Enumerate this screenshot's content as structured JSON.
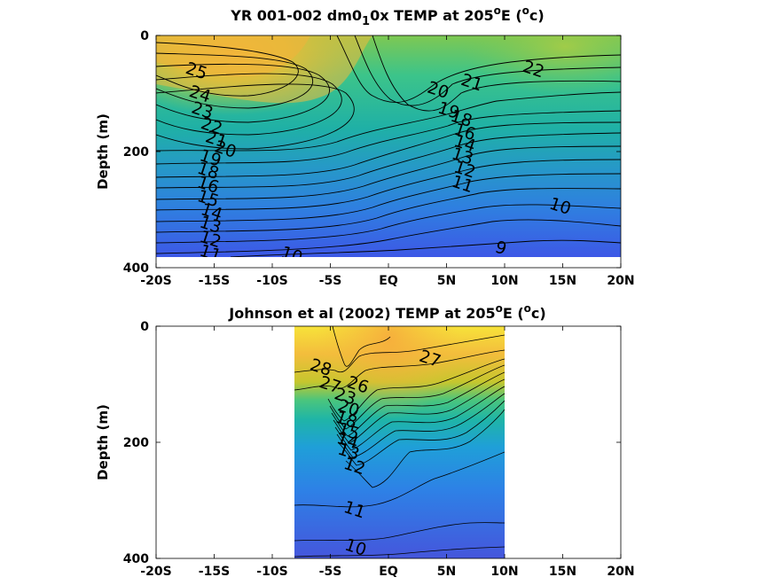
{
  "chart_data": [
    {
      "type": "contour",
      "title_parts": {
        "a": "YR 001-002 dm0",
        "sub": "1",
        "b": "0x TEMP at 205",
        "sup1": "o",
        "c": "E (",
        "sup2": "o",
        "d": "c)"
      },
      "ylabel": "Depth (m)",
      "xticks": [
        "-20S",
        "-15S",
        "-10S",
        "-5S",
        "EQ",
        "5N",
        "10N",
        "15N",
        "20N"
      ],
      "xtick_values": [
        -20,
        -15,
        -10,
        -5,
        0,
        5,
        10,
        15,
        20
      ],
      "yticks": [
        "0",
        "200",
        "400"
      ],
      "ytick_values": [
        0,
        200,
        400
      ],
      "xlim": [
        -20,
        20
      ],
      "ylim": [
        0,
        400
      ],
      "y_reversed": true,
      "data_extent": {
        "x": [
          -20,
          20
        ],
        "y": [
          0,
          385
        ]
      },
      "contour_labels": [
        {
          "text": "25",
          "x": -16.5,
          "y": 60
        },
        {
          "text": "24",
          "x": -16.2,
          "y": 100
        },
        {
          "text": "23",
          "x": -16.0,
          "y": 128
        },
        {
          "text": "22",
          "x": -15.2,
          "y": 155
        },
        {
          "text": "21",
          "x": -14.8,
          "y": 178
        },
        {
          "text": "20",
          "x": -14.0,
          "y": 195
        },
        {
          "text": "19",
          "x": -15.3,
          "y": 210
        },
        {
          "text": "18",
          "x": -15.5,
          "y": 232
        },
        {
          "text": "16",
          "x": -15.5,
          "y": 256
        },
        {
          "text": "15",
          "x": -15.5,
          "y": 280
        },
        {
          "text": "14",
          "x": -15.2,
          "y": 303
        },
        {
          "text": "13",
          "x": -15.3,
          "y": 325
        },
        {
          "text": "12",
          "x": -15.3,
          "y": 350
        },
        {
          "text": "11",
          "x": -15.3,
          "y": 374
        },
        {
          "text": "10",
          "x": -8.3,
          "y": 377
        },
        {
          "text": "20",
          "x": 4.3,
          "y": 93
        },
        {
          "text": "21",
          "x": 7.2,
          "y": 80
        },
        {
          "text": "22",
          "x": 12.5,
          "y": 57
        },
        {
          "text": "19",
          "x": 5.2,
          "y": 128
        },
        {
          "text": "18",
          "x": 6.3,
          "y": 142
        },
        {
          "text": "16",
          "x": 6.6,
          "y": 165
        },
        {
          "text": "14",
          "x": 6.6,
          "y": 185
        },
        {
          "text": "13",
          "x": 6.4,
          "y": 207
        },
        {
          "text": "12",
          "x": 6.6,
          "y": 230
        },
        {
          "text": "11",
          "x": 6.4,
          "y": 255
        },
        {
          "text": "10",
          "x": 14.8,
          "y": 293
        },
        {
          "text": "9",
          "x": 9.7,
          "y": 365
        }
      ]
    },
    {
      "type": "contour",
      "title_parts": {
        "a": "Johnson et al (2002) TEMP at 205",
        "sup1": "o",
        "c": "E (",
        "sup2": "o",
        "d": "c)"
      },
      "ylabel": "Depth (m)",
      "xticks": [
        "-20S",
        "-15S",
        "-10S",
        "-5S",
        "EQ",
        "5N",
        "10N",
        "15N",
        "20N"
      ],
      "xtick_values": [
        -20,
        -15,
        -10,
        -5,
        0,
        5,
        10,
        15,
        20
      ],
      "yticks": [
        "0",
        "200",
        "400"
      ],
      "ytick_values": [
        0,
        200,
        400
      ],
      "xlim": [
        -20,
        20
      ],
      "ylim": [
        0,
        400
      ],
      "y_reversed": true,
      "data_extent": {
        "x": [
          -8,
          10
        ],
        "y": [
          0,
          400
        ]
      },
      "contour_labels": [
        {
          "text": "28",
          "x": -5.8,
          "y": 70
        },
        {
          "text": "27",
          "x": -5.0,
          "y": 100
        },
        {
          "text": "26",
          "x": -2.6,
          "y": 100
        },
        {
          "text": "27",
          "x": 3.6,
          "y": 55
        },
        {
          "text": "23",
          "x": -3.7,
          "y": 120
        },
        {
          "text": "20",
          "x": -3.4,
          "y": 140
        },
        {
          "text": "18",
          "x": -3.6,
          "y": 160
        },
        {
          "text": "15",
          "x": -3.4,
          "y": 180
        },
        {
          "text": "14",
          "x": -3.5,
          "y": 196
        },
        {
          "text": "13",
          "x": -3.4,
          "y": 215
        },
        {
          "text": "12",
          "x": -2.9,
          "y": 240
        },
        {
          "text": "11",
          "x": -2.9,
          "y": 315
        },
        {
          "text": "10",
          "x": -2.8,
          "y": 380
        }
      ]
    }
  ]
}
